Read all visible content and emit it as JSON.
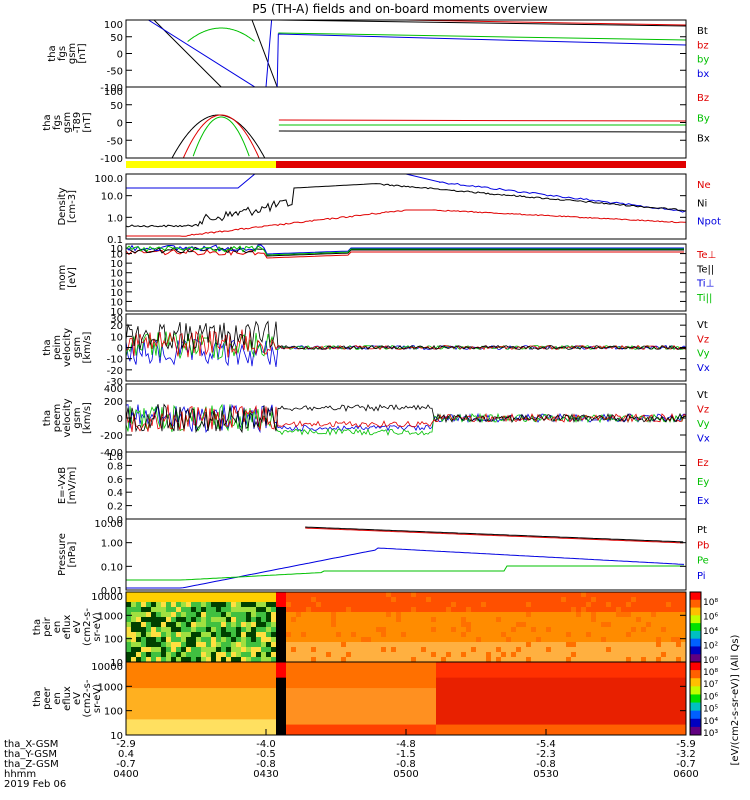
{
  "title": "P5 (TH-A) fields and on-board moments overview",
  "colors": {
    "black": "#000000",
    "red": "#e00000",
    "green": "#00c000",
    "blue": "#0000e0",
    "yellow": "#ffff00"
  },
  "chart_data": {
    "type": "line",
    "time_axis": {
      "ticks": [
        "0400",
        "0430",
        "0500",
        "0530",
        "0600"
      ],
      "rows": [
        {
          "label": "tha_X-GSM",
          "values": [
            "-2.9",
            "-4.0",
            "-4.8",
            "-5.4",
            "-5.9"
          ]
        },
        {
          "label": "tha_Y-GSM",
          "values": [
            "0.4",
            "-0.5",
            "-1.5",
            "-2.3",
            "-3.2"
          ]
        },
        {
          "label": "tha_Z-GSM",
          "values": [
            "-0.7",
            "-0.8",
            "-0.8",
            "-0.8",
            "-0.7"
          ]
        },
        {
          "label": "hhmm",
          "values": [
            "0400",
            "0430",
            "0500",
            "0530",
            "0600"
          ]
        }
      ],
      "date": "2019 Feb 06"
    },
    "panels": [
      {
        "id": "fgs_gsm",
        "ylabel": [
          "tha",
          "fgs",
          "gsm",
          "[nT]"
        ],
        "yticks": [
          "100",
          "50",
          "0",
          "-50",
          "-100"
        ],
        "legend": [
          {
            "name": "Bt",
            "color": "black"
          },
          {
            "name": "bz",
            "color": "red"
          },
          {
            "name": "by",
            "color": "green"
          },
          {
            "name": "bx",
            "color": "blue"
          }
        ]
      },
      {
        "id": "fgs_gsm_dipole",
        "ylabel": [
          "tha",
          "fgs",
          "gsm",
          "-T89",
          "[nT]"
        ],
        "yticks": [
          "100",
          "50",
          "0",
          "-50",
          "-100"
        ],
        "legend": [
          {
            "name": "Bz",
            "color": "red"
          },
          {
            "name": "By",
            "color": "green"
          },
          {
            "name": "Bx",
            "color": "black"
          }
        ]
      },
      {
        "id": "density",
        "ylabel": [
          "Density",
          "[cm-3]"
        ],
        "yticks": [
          "100.0",
          "10.0",
          "1.0",
          "0.1"
        ],
        "legend": [
          {
            "name": "Ne",
            "color": "red"
          },
          {
            "name": "Ni",
            "color": "black"
          },
          {
            "name": "Npot",
            "color": "blue"
          }
        ]
      },
      {
        "id": "temperature",
        "ylabel": [
          "mom",
          "[eV]"
        ],
        "yticks": [
          "10",
          "10",
          "10",
          "10",
          "10",
          "10",
          "10",
          "10"
        ],
        "legend": [
          {
            "name": "Te⊥",
            "color": "red"
          },
          {
            "name": "Te||",
            "color": "black"
          },
          {
            "name": "Ti⊥",
            "color": "blue"
          },
          {
            "name": "Ti||",
            "color": "green"
          }
        ]
      },
      {
        "id": "peim_velocity",
        "ylabel": [
          "tha",
          "peim",
          "velocity",
          "gsm",
          "[km/s]"
        ],
        "yticks": [
          "30",
          "20",
          "10",
          "0",
          "-10",
          "-20",
          "-30"
        ],
        "legend": [
          {
            "name": "Vt",
            "color": "black"
          },
          {
            "name": "Vz",
            "color": "red"
          },
          {
            "name": "Vy",
            "color": "green"
          },
          {
            "name": "Vx",
            "color": "blue"
          }
        ]
      },
      {
        "id": "peem_velocity",
        "ylabel": [
          "tha",
          "peem",
          "velocity",
          "gsm",
          "[km/s]"
        ],
        "yticks": [
          "400",
          "200",
          "0",
          "-200",
          "-400"
        ],
        "legend": [
          {
            "name": "Vt",
            "color": "black"
          },
          {
            "name": "Vz",
            "color": "red"
          },
          {
            "name": "Vy",
            "color": "green"
          },
          {
            "name": "Vx",
            "color": "blue"
          }
        ]
      },
      {
        "id": "e_field",
        "ylabel": [
          "E=-VxB",
          "[mV/m]"
        ],
        "yticks": [
          "1.0",
          "0.8",
          "0.6",
          "0.4",
          "0.2",
          "0.0"
        ],
        "legend": [
          {
            "name": "Ez",
            "color": "red"
          },
          {
            "name": "Ey",
            "color": "green"
          },
          {
            "name": "Ex",
            "color": "blue"
          }
        ]
      },
      {
        "id": "pressure",
        "ylabel": [
          "Pressure",
          "[nPa]"
        ],
        "yticks": [
          "10.00",
          "1.00",
          "0.10",
          "0.01"
        ],
        "legend": [
          {
            "name": "Pt",
            "color": "black"
          },
          {
            "name": "Pb",
            "color": "red"
          },
          {
            "name": "Pe",
            "color": "green"
          },
          {
            "name": "Pi",
            "color": "blue"
          }
        ]
      },
      {
        "id": "peir_spectrogram",
        "ylabel": [
          "tha",
          "peir",
          "en",
          "eflux",
          "eV",
          "(cm2-s-",
          "sr-eV)"
        ],
        "yticks": [
          "10000",
          "1000",
          "100",
          "10"
        ]
      },
      {
        "id": "peer_spectrogram",
        "ylabel": [
          "tha",
          "peer",
          "en",
          "eflux",
          "eV",
          "(cm2-s-",
          "sr-eV)"
        ],
        "yticks": [
          "10000",
          "1000",
          "100",
          "10"
        ]
      }
    ],
    "colorbar": {
      "label": "[eV/(cm2-s-sr-eV)] (All Qs)",
      "top_ticks": [
        "10⁸",
        "10⁶",
        "10⁴",
        "10²",
        "10⁰"
      ],
      "bottom_ticks": [
        "10⁸",
        "10⁷",
        "10⁶",
        "10⁵",
        "10⁴",
        "10³"
      ]
    }
  }
}
